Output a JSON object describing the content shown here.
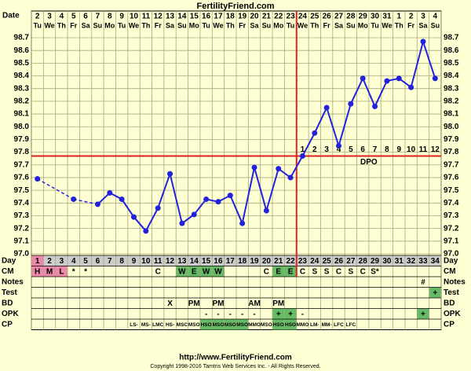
{
  "chart_data": {
    "type": "line",
    "title": "FertilityFriend.com",
    "x_header": "Date",
    "dates": [
      2,
      3,
      4,
      5,
      6,
      7,
      8,
      9,
      10,
      11,
      12,
      13,
      14,
      15,
      16,
      17,
      18,
      19,
      20,
      21,
      22,
      23,
      24,
      25,
      26,
      27,
      28,
      29,
      30,
      31,
      1,
      2,
      3,
      4
    ],
    "weekdays": [
      "Tu",
      "We",
      "Th",
      "Fr",
      "Sa",
      "Su",
      "Mo",
      "Tu",
      "We",
      "Th",
      "Fr",
      "Sa",
      "Su",
      "Mo",
      "Tu",
      "We",
      "Th",
      "Fr",
      "Sa",
      "Su",
      "Mo",
      "Tu",
      "We",
      "Th",
      "Fr",
      "Sa",
      "Su",
      "Mo",
      "Tu",
      "We",
      "Th",
      "Fr",
      "Sa",
      "Su"
    ],
    "values": [
      97.59,
      null,
      null,
      97.43,
      null,
      97.39,
      97.48,
      97.43,
      97.29,
      97.18,
      97.36,
      97.63,
      97.24,
      97.31,
      97.43,
      97.41,
      97.46,
      97.24,
      97.68,
      97.34,
      97.67,
      97.6,
      97.77,
      97.95,
      98.15,
      97.85,
      98.18,
      98.38,
      98.16,
      98.36,
      98.38,
      98.31,
      98.67,
      98.38
    ],
    "color": "#2222dd",
    "ylim": [
      97.0,
      98.7
    ],
    "yticks": [
      {
        "value": 97.0,
        "label": "97.0"
      },
      97.1,
      97.2,
      97.3,
      97.4,
      97.5,
      97.6,
      97.7,
      97.8,
      97.9,
      {
        "value": 98.0,
        "label": "98.0"
      },
      98.1,
      98.2,
      98.3,
      98.4,
      98.5,
      98.6,
      98.7
    ],
    "grid": true,
    "coverline": 97.77,
    "coverline_color": "#dd2222",
    "ovulation_day": 22,
    "dpo_label": "DPO",
    "dpo": [
      1,
      2,
      3,
      4,
      5,
      6,
      7,
      8,
      9,
      10,
      11,
      12
    ],
    "rows": [
      {
        "label": "Day",
        "cells": [
          1,
          2,
          3,
          4,
          5,
          6,
          7,
          8,
          9,
          10,
          11,
          12,
          13,
          14,
          15,
          16,
          17,
          18,
          19,
          20,
          21,
          22,
          23,
          24,
          25,
          26,
          27,
          28,
          29,
          30,
          31,
          32,
          33,
          34
        ],
        "colors": [
          "#ee88aa",
          null,
          null,
          null,
          null,
          null,
          null,
          null,
          null,
          null,
          null,
          null,
          null,
          null,
          null,
          null,
          null,
          null,
          null,
          null,
          null,
          null,
          null,
          null,
          null,
          null,
          null,
          null,
          null,
          null,
          null,
          null,
          null,
          null
        ]
      },
      {
        "label": "CM",
        "cells": [
          "H",
          "M",
          "L",
          "*",
          "*",
          null,
          null,
          null,
          null,
          null,
          "C",
          null,
          "W",
          "E",
          "W",
          "W",
          null,
          null,
          null,
          "C",
          "E",
          "E",
          "C",
          "S",
          "S",
          "C",
          "S",
          "C",
          "S*",
          null,
          null,
          null,
          null,
          null
        ],
        "colors": [
          "#ee88aa",
          "#ee88aa",
          "#ee88aa",
          null,
          null,
          null,
          null,
          null,
          null,
          null,
          null,
          null,
          "#66bb66",
          "#66bb66",
          "#66bb66",
          "#66bb66",
          null,
          null,
          null,
          null,
          "#66bb66",
          "#66bb66",
          null,
          null,
          null,
          null,
          null,
          null,
          null,
          null,
          null,
          null,
          null,
          null
        ]
      },
      {
        "label": "Notes",
        "cells": [
          null,
          null,
          null,
          null,
          null,
          null,
          null,
          null,
          null,
          null,
          null,
          null,
          null,
          null,
          null,
          null,
          null,
          null,
          null,
          null,
          null,
          null,
          null,
          null,
          null,
          null,
          null,
          null,
          null,
          null,
          null,
          null,
          "#",
          null
        ]
      },
      {
        "label": "Test",
        "cells": [
          null,
          null,
          null,
          null,
          null,
          null,
          null,
          null,
          null,
          null,
          null,
          null,
          null,
          null,
          null,
          null,
          null,
          null,
          null,
          null,
          null,
          null,
          null,
          null,
          null,
          null,
          null,
          null,
          null,
          null,
          null,
          null,
          null,
          "+"
        ],
        "colors": [
          null,
          null,
          null,
          null,
          null,
          null,
          null,
          null,
          null,
          null,
          null,
          null,
          null,
          null,
          null,
          null,
          null,
          null,
          null,
          null,
          null,
          null,
          null,
          null,
          null,
          null,
          null,
          null,
          null,
          null,
          null,
          null,
          null,
          "#66bb66"
        ]
      },
      {
        "label": "BD",
        "cells": [
          null,
          null,
          null,
          null,
          null,
          null,
          null,
          null,
          null,
          null,
          null,
          "X",
          null,
          "PM",
          null,
          "PM",
          null,
          null,
          "AM",
          null,
          "PM",
          null,
          null,
          null,
          null,
          null,
          null,
          null,
          null,
          null,
          null,
          null,
          null,
          null
        ]
      },
      {
        "label": "OPK",
        "cells": [
          null,
          null,
          null,
          null,
          null,
          null,
          null,
          null,
          null,
          null,
          null,
          null,
          null,
          null,
          "-",
          "-",
          "-",
          "-",
          "-",
          null,
          "+",
          "+",
          "-",
          null,
          null,
          null,
          null,
          null,
          null,
          null,
          null,
          null,
          "+",
          null
        ],
        "colors": [
          null,
          null,
          null,
          null,
          null,
          null,
          null,
          null,
          null,
          null,
          null,
          null,
          null,
          null,
          null,
          null,
          null,
          null,
          null,
          null,
          "#66bb66",
          "#66bb66",
          null,
          null,
          null,
          null,
          null,
          null,
          null,
          null,
          null,
          null,
          "#66bb66",
          null
        ]
      },
      {
        "label": "CP",
        "cells": [
          null,
          null,
          null,
          null,
          null,
          null,
          null,
          null,
          "LS-",
          "MS-",
          "LMC",
          "HS-",
          "MSC",
          "MSO",
          "HSO",
          "MSO",
          "MSO",
          "MSO",
          "MMO",
          "MSO",
          "HSO",
          "HSO",
          "MMO",
          "LM-",
          "MM-",
          "LFC",
          "LFC",
          null,
          null,
          null,
          null,
          null,
          null,
          null
        ],
        "colors": [
          null,
          null,
          null,
          null,
          null,
          null,
          null,
          null,
          null,
          null,
          null,
          null,
          null,
          null,
          "#66bb66",
          "#66bb66",
          "#66bb66",
          "#66bb66",
          null,
          null,
          "#66bb66",
          "#66bb66",
          null,
          null,
          null,
          null,
          null,
          null,
          null,
          null,
          null,
          null,
          null,
          null
        ]
      }
    ],
    "url": "http://www.FertilityFriend.com",
    "copyright": "Copyright 1998-2016 Tamtris Web Services Inc. - All Rights Reserved."
  }
}
